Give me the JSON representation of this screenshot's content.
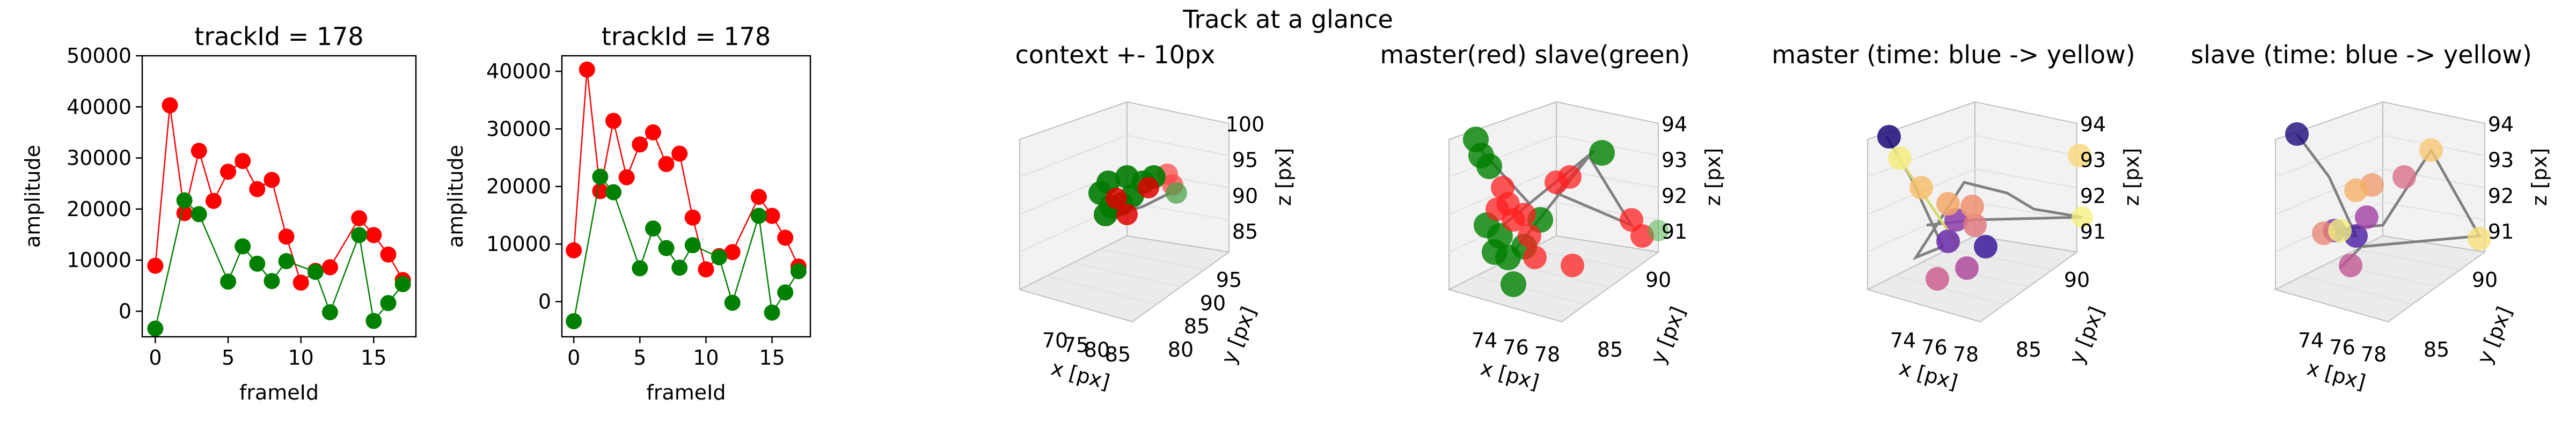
{
  "suptitle": "Track at a glance",
  "colors": {
    "red": "#ff0000",
    "green": "#008000",
    "grey": "#808080"
  },
  "chart_data": [
    {
      "type": "line",
      "title": "trackId = 178",
      "xlabel": "frameId",
      "ylabel": "amplitude",
      "xlim": [
        -0.9,
        17.9
      ],
      "ylim": [
        -5000,
        50000
      ],
      "xticks": [
        0,
        5,
        10,
        15
      ],
      "yticks": [
        0,
        10000,
        20000,
        30000,
        40000,
        50000
      ],
      "series": [
        {
          "color": "#ff0000",
          "x": [
            0,
            1,
            2,
            3,
            4,
            5,
            6,
            7,
            8,
            9,
            10,
            11,
            12,
            14,
            15,
            16,
            17
          ],
          "y": [
            8900,
            40300,
            19200,
            31400,
            21600,
            27300,
            29400,
            23900,
            25700,
            14600,
            5600,
            7900,
            8600,
            18200,
            14900,
            11100,
            6100
          ]
        },
        {
          "color": "#008000",
          "x": [
            0,
            2,
            3,
            5,
            6,
            7,
            8,
            9,
            11,
            12,
            14,
            15,
            16,
            17
          ],
          "y": [
            -3400,
            21700,
            19000,
            5800,
            12700,
            9300,
            5900,
            9800,
            7700,
            -200,
            14900,
            -1900,
            1600,
            5300
          ]
        }
      ]
    },
    {
      "type": "line",
      "title": "trackId = 178",
      "xlabel": "frameId",
      "ylabel": "amplitude",
      "xlim": [
        -0.9,
        17.9
      ],
      "ylim": [
        -6100,
        42700
      ],
      "xticks": [
        0,
        5,
        10,
        15
      ],
      "yticks": [
        0,
        10000,
        20000,
        30000,
        40000
      ],
      "series": [
        {
          "color": "#ff0000",
          "x": [
            0,
            1,
            2,
            3,
            4,
            5,
            6,
            7,
            8,
            9,
            10,
            11,
            12,
            14,
            15,
            16,
            17
          ],
          "y": [
            8900,
            40300,
            19200,
            31400,
            21600,
            27300,
            29400,
            23900,
            25700,
            14600,
            5600,
            7900,
            8600,
            18200,
            14900,
            11100,
            6100
          ]
        },
        {
          "color": "#008000",
          "x": [
            0,
            2,
            3,
            5,
            6,
            7,
            8,
            9,
            11,
            12,
            14,
            15,
            16,
            17
          ],
          "y": [
            -3400,
            21700,
            19000,
            5800,
            12700,
            9300,
            5900,
            9800,
            7700,
            -200,
            14900,
            -1900,
            1600,
            5300
          ]
        }
      ]
    },
    {
      "type": "scatter",
      "title": "context +- 10px",
      "xlabel": "x [px]",
      "ylabel": "y [px]",
      "zlabel": "z [px]",
      "xticks": [
        "70",
        "75",
        "80",
        "85"
      ],
      "yticks": [
        "80",
        "85",
        "90",
        "95"
      ],
      "zticks": [
        "85",
        "90",
        "95",
        "100"
      ]
    },
    {
      "type": "scatter",
      "title": "master(red) slave(green)",
      "xlabel": "x [px]",
      "ylabel": "y [px]",
      "zlabel": "z [px]",
      "xticks": [
        "74",
        "76",
        "78"
      ],
      "yticks": [
        "85",
        "90"
      ],
      "zticks": [
        "91",
        "92",
        "93",
        "94"
      ]
    },
    {
      "type": "scatter",
      "title": "master (time: blue -> yellow)",
      "xlabel": "x [px]",
      "ylabel": "y [px]",
      "zlabel": "z [px]",
      "xticks": [
        "74",
        "76",
        "78"
      ],
      "yticks": [
        "85",
        "90"
      ],
      "zticks": [
        "91",
        "92",
        "93",
        "94"
      ]
    },
    {
      "type": "scatter",
      "title": "slave (time: blue -> yellow)",
      "xlabel": "x [px]",
      "ylabel": "y [px]",
      "zlabel": "z [px]",
      "xticks": [
        "74",
        "76",
        "78"
      ],
      "yticks": [
        "85",
        "90"
      ],
      "zticks": [
        "91",
        "92",
        "93",
        "94"
      ]
    }
  ]
}
